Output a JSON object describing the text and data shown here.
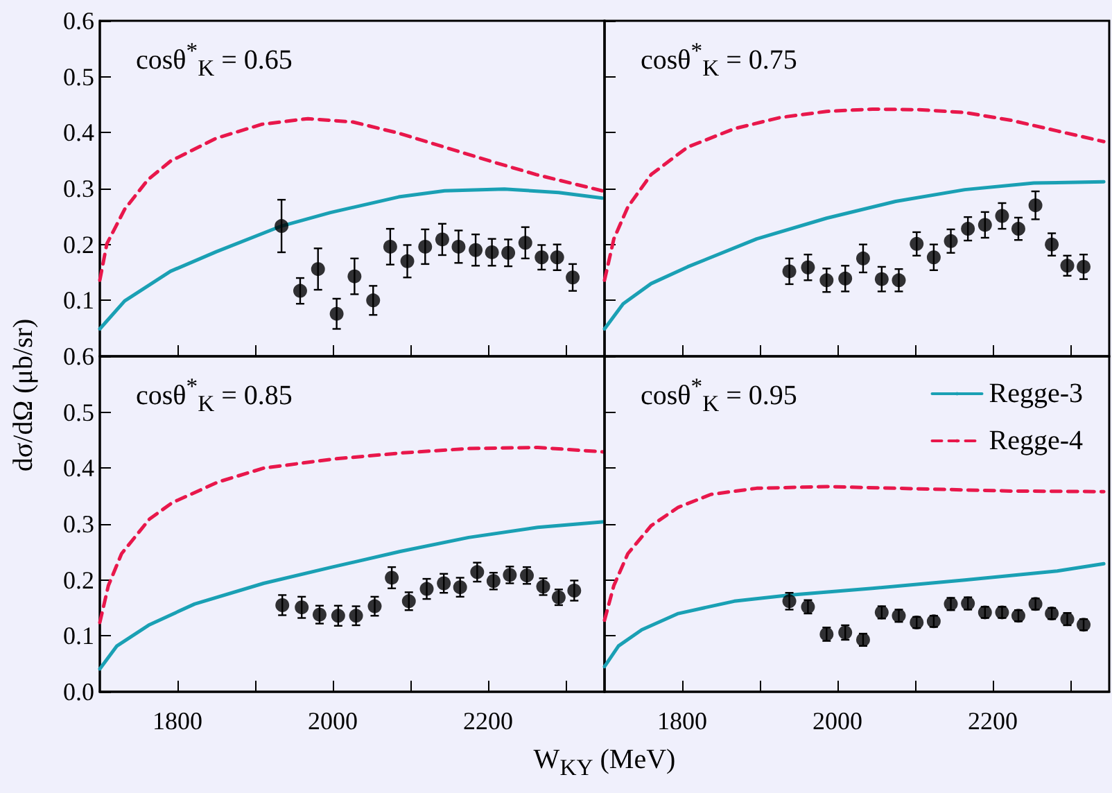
{
  "chart_data": [
    {
      "type": "scatter",
      "title": "cosθ$^{*}$$_{K}$ = 0.65",
      "ylabel": "dσ/dΩ (μb/sr)",
      "xlim": [
        1700,
        2350
      ],
      "xticks": [
        1800,
        {
          "value": 1900,
          "label": null
        },
        2000,
        {
          "value": 2100,
          "label": null
        },
        2200,
        {
          "value": 2300,
          "label": null
        }
      ],
      "ylim": [
        0,
        0.6
      ],
      "yticks": [
        0.1,
        0.2,
        0.3,
        0.4,
        0.5,
        0.6
      ],
      "tick_labels": "y",
      "grid": false,
      "legend": false,
      "series": [
        {
          "type": "line",
          "color": "#1aa0b4",
          "line_style": "solid",
          "x": [
            1700,
            1732,
            1791,
            1850,
            1934,
            1997,
            2085,
            2144,
            2221,
            2291,
            2347
          ],
          "values": [
            0.049,
            0.099,
            0.152,
            0.187,
            0.233,
            0.257,
            0.285,
            0.296,
            0.299,
            0.293,
            0.283
          ]
        },
        {
          "type": "line",
          "color": "#e8174b",
          "line_style": "dashed",
          "x": [
            1700,
            1709,
            1732,
            1762,
            1791,
            1850,
            1909,
            1968,
            2026,
            2085,
            2144,
            2203,
            2262,
            2347
          ],
          "values": [
            0.136,
            0.201,
            0.263,
            0.316,
            0.349,
            0.39,
            0.415,
            0.425,
            0.419,
            0.399,
            0.374,
            0.349,
            0.325,
            0.296
          ]
        },
        {
          "color": "#000000",
          "marker": "circle",
          "x": [
            1934,
            1958,
            1981,
            2005,
            2028,
            2052,
            2074,
            2096,
            2119,
            2141,
            2162,
            2184,
            2205,
            2226,
            2248,
            2269,
            2289,
            2309
          ],
          "values": [
            0.233,
            0.117,
            0.156,
            0.076,
            0.143,
            0.1,
            0.196,
            0.17,
            0.196,
            0.209,
            0.196,
            0.19,
            0.186,
            0.185,
            0.203,
            0.177,
            0.177,
            0.141
          ],
          "errors": [
            0.047,
            0.023,
            0.037,
            0.027,
            0.032,
            0.026,
            0.032,
            0.029,
            0.031,
            0.028,
            0.029,
            0.028,
            0.024,
            0.024,
            0.028,
            0.022,
            0.023,
            0.024
          ]
        }
      ]
    },
    {
      "type": "scatter",
      "title": "cosθ$^{*}$$_{K}$ = 0.75",
      "xlim": [
        1700,
        2350
      ],
      "xticks": [
        1800,
        {
          "value": 1900,
          "label": null
        },
        2000,
        {
          "value": 2100,
          "label": null
        },
        2200,
        {
          "value": 2300,
          "label": null
        }
      ],
      "ylim": [
        0,
        0.6
      ],
      "yticks": [
        0.1,
        0.2,
        0.3,
        0.4,
        0.5,
        0.6
      ],
      "tick_labels": false,
      "grid": false,
      "legend": false,
      "series": [
        {
          "type": "line",
          "color": "#1aa0b4",
          "line_style": "solid",
          "x": [
            1700,
            1724,
            1760,
            1807,
            1896,
            1986,
            2075,
            2164,
            2253,
            2343
          ],
          "values": [
            0.049,
            0.094,
            0.13,
            0.16,
            0.21,
            0.247,
            0.277,
            0.298,
            0.31,
            0.312
          ]
        },
        {
          "type": "line",
          "color": "#e8174b",
          "line_style": "dashed",
          "x": [
            1700,
            1712,
            1730,
            1760,
            1807,
            1867,
            1926,
            1986,
            2045,
            2105,
            2164,
            2224,
            2283,
            2343
          ],
          "values": [
            0.136,
            0.21,
            0.267,
            0.325,
            0.374,
            0.407,
            0.427,
            0.438,
            0.442,
            0.441,
            0.436,
            0.422,
            0.403,
            0.384
          ]
        },
        {
          "color": "#000000",
          "marker": "circle",
          "x": [
            1938,
            1962,
            1986,
            2010,
            2033,
            2057,
            2079,
            2102,
            2124,
            2146,
            2168,
            2190,
            2212,
            2233,
            2255,
            2276,
            2296,
            2317
          ],
          "values": [
            0.152,
            0.159,
            0.136,
            0.139,
            0.175,
            0.138,
            0.136,
            0.201,
            0.177,
            0.206,
            0.228,
            0.235,
            0.251,
            0.228,
            0.27,
            0.2,
            0.162,
            0.16
          ],
          "errors": [
            0.023,
            0.023,
            0.021,
            0.023,
            0.025,
            0.022,
            0.02,
            0.021,
            0.023,
            0.021,
            0.021,
            0.023,
            0.023,
            0.02,
            0.025,
            0.02,
            0.018,
            0.022
          ]
        }
      ]
    },
    {
      "type": "scatter",
      "title": "cosθ$^{*}$$_{K}$ = 0.85",
      "xlabel": "W$_{KY}$ (MeV)",
      "xlim": [
        1700,
        2350
      ],
      "xticks": [
        1800,
        {
          "value": 1900,
          "label": null
        },
        2000,
        {
          "value": 2100,
          "label": null
        },
        2200,
        {
          "value": 2300,
          "label": null
        }
      ],
      "ylim": [
        0,
        0.6
      ],
      "yticks": [
        {
          "value": 0,
          "label": "0.0"
        },
        0.1,
        0.2,
        0.3,
        0.4,
        0.5,
        0.6
      ],
      "grid": false,
      "legend": false,
      "series": [
        {
          "type": "line",
          "color": "#1aa0b4",
          "line_style": "solid",
          "x": [
            1700,
            1722,
            1764,
            1822,
            1911,
            1999,
            2087,
            2175,
            2264,
            2349
          ],
          "values": [
            0.041,
            0.082,
            0.12,
            0.157,
            0.194,
            0.223,
            0.251,
            0.276,
            0.294,
            0.304
          ]
        },
        {
          "type": "line",
          "color": "#e8174b",
          "line_style": "dashed",
          "x": [
            1700,
            1711,
            1728,
            1764,
            1793,
            1852,
            1911,
            1999,
            2087,
            2175,
            2264,
            2349
          ],
          "values": [
            0.124,
            0.19,
            0.247,
            0.309,
            0.338,
            0.375,
            0.4,
            0.416,
            0.427,
            0.435,
            0.437,
            0.429
          ]
        },
        {
          "color": "#000000",
          "marker": "circle",
          "x": [
            1935,
            1960,
            1983,
            2007,
            2030,
            2054,
            2076,
            2098,
            2121,
            2143,
            2164,
            2186,
            2207,
            2228,
            2250,
            2271,
            2291,
            2311
          ],
          "values": [
            0.155,
            0.151,
            0.138,
            0.136,
            0.136,
            0.153,
            0.204,
            0.162,
            0.184,
            0.194,
            0.187,
            0.214,
            0.198,
            0.209,
            0.208,
            0.188,
            0.169,
            0.181
          ],
          "errors": [
            0.018,
            0.019,
            0.016,
            0.018,
            0.017,
            0.017,
            0.019,
            0.016,
            0.018,
            0.017,
            0.017,
            0.017,
            0.015,
            0.015,
            0.015,
            0.015,
            0.014,
            0.018
          ]
        }
      ]
    },
    {
      "type": "scatter",
      "title": "cosθ$^{*}$$_{K}$ = 0.95",
      "xlim": [
        1700,
        2350
      ],
      "xticks": [
        1800,
        {
          "value": 1900,
          "label": null
        },
        2000,
        {
          "value": 2100,
          "label": null
        },
        2200,
        {
          "value": 2300,
          "label": null
        }
      ],
      "ylim": [
        0,
        0.6
      ],
      "yticks": [
        0.1,
        0.2,
        0.3,
        0.4,
        0.5,
        0.6
      ],
      "tick_labels": "x",
      "grid": false,
      "legend": "top right",
      "series": [
        {
          "type": "line",
          "name": "Regge-3",
          "color": "#1aa0b4",
          "line_style": "solid",
          "x": [
            1700,
            1718,
            1748,
            1795,
            1867,
            1938,
            2045,
            2164,
            2283,
            2343
          ],
          "values": [
            0.045,
            0.082,
            0.111,
            0.14,
            0.162,
            0.173,
            0.185,
            0.2,
            0.216,
            0.229
          ]
        },
        {
          "type": "line",
          "name": "Regge-4",
          "color": "#e8174b",
          "line_style": "dashed",
          "x": [
            1700,
            1712,
            1730,
            1760,
            1795,
            1837,
            1896,
            1986,
            2105,
            2224,
            2343
          ],
          "values": [
            0.128,
            0.19,
            0.247,
            0.297,
            0.33,
            0.353,
            0.364,
            0.367,
            0.363,
            0.359,
            0.358
          ]
        },
        {
          "color": "#000000",
          "marker": "circle",
          "x": [
            1938,
            1962,
            1986,
            2010,
            2033,
            2057,
            2079,
            2102,
            2124,
            2146,
            2168,
            2190,
            2212,
            2233,
            2255,
            2276,
            2296,
            2317
          ],
          "values": [
            0.162,
            0.152,
            0.103,
            0.106,
            0.093,
            0.142,
            0.136,
            0.124,
            0.126,
            0.157,
            0.158,
            0.142,
            0.142,
            0.136,
            0.157,
            0.14,
            0.13,
            0.12
          ],
          "errors": [
            0.015,
            0.012,
            0.012,
            0.013,
            0.011,
            0.011,
            0.011,
            0.01,
            0.01,
            0.011,
            0.011,
            0.01,
            0.01,
            0.01,
            0.01,
            0.01,
            0.011,
            0.01
          ]
        }
      ]
    }
  ]
}
